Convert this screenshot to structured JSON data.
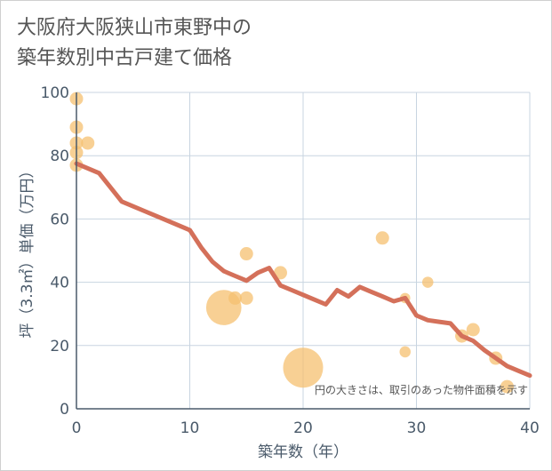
{
  "chart_data": {
    "type": "scatter",
    "title_lines": [
      "大阪府大阪狭山市東野中の",
      "築年数別中古戸建て価格"
    ],
    "xlabel": "築年数（年）",
    "ylabel": "坪（3.3㎡）単価（万円）",
    "xlim": [
      0,
      40
    ],
    "ylim": [
      0,
      100
    ],
    "xticks": [
      0,
      10,
      20,
      30,
      40
    ],
    "yticks": [
      0,
      20,
      40,
      60,
      80,
      100
    ],
    "xtick_labels": [
      "0",
      "10",
      "20",
      "30",
      "40"
    ],
    "ytick_labels": [
      "0",
      "20",
      "40",
      "60",
      "80",
      "100"
    ],
    "grid": true,
    "note": "円の大きさは、取引のあった物件面積を示す",
    "colors": {
      "bubble": "#f5c070",
      "line": "#d4705a",
      "grid": "#c8d4e0",
      "axis": "#4a5a6a"
    },
    "bubbles": [
      {
        "x": 0,
        "y": 98,
        "size": 1
      },
      {
        "x": 0,
        "y": 89,
        "size": 1
      },
      {
        "x": 0,
        "y": 84,
        "size": 1
      },
      {
        "x": 0,
        "y": 81,
        "size": 1
      },
      {
        "x": 0,
        "y": 77,
        "size": 1
      },
      {
        "x": 1,
        "y": 84,
        "size": 1
      },
      {
        "x": 13,
        "y": 32,
        "size": 7
      },
      {
        "x": 14,
        "y": 35,
        "size": 1
      },
      {
        "x": 15,
        "y": 49,
        "size": 1
      },
      {
        "x": 15,
        "y": 35,
        "size": 1
      },
      {
        "x": 18,
        "y": 43,
        "size": 1
      },
      {
        "x": 20,
        "y": 13,
        "size": 9
      },
      {
        "x": 27,
        "y": 54,
        "size": 1
      },
      {
        "x": 29,
        "y": 35,
        "size": 0.6
      },
      {
        "x": 29,
        "y": 18,
        "size": 0.7
      },
      {
        "x": 31,
        "y": 40,
        "size": 0.7
      },
      {
        "x": 34,
        "y": 23,
        "size": 1
      },
      {
        "x": 35,
        "y": 25,
        "size": 1
      },
      {
        "x": 37,
        "y": 16,
        "size": 1
      },
      {
        "x": 38,
        "y": 7,
        "size": 1
      }
    ],
    "trend": {
      "x": [
        0,
        2,
        4,
        6,
        8,
        10,
        11,
        12,
        13,
        14,
        15,
        16,
        17,
        18,
        19,
        20,
        21,
        22,
        23,
        24,
        25,
        26,
        27,
        28,
        29,
        30,
        31,
        32,
        33,
        34,
        35,
        36,
        37,
        38,
        39,
        40
      ],
      "y": [
        77.5,
        74.5,
        65.5,
        62.5,
        59.5,
        56.5,
        51,
        46.5,
        43.5,
        42,
        40.5,
        43,
        44.5,
        39,
        37.5,
        36,
        34.5,
        33,
        37.5,
        35.5,
        38.5,
        37,
        35.5,
        34,
        35,
        29.5,
        28,
        27.5,
        27,
        23,
        21.5,
        18.5,
        16,
        13.5,
        12,
        10.5
      ]
    }
  }
}
